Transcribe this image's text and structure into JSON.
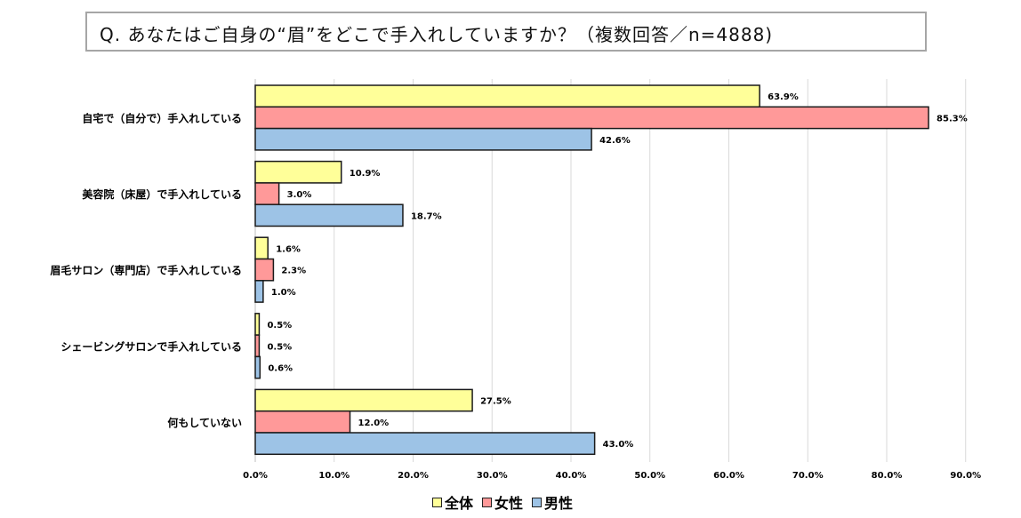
{
  "title": "Q. あなたはご自身の“眉”をどこで手入れしていますか？（複数回答／n=4888)",
  "chart_data": {
    "type": "bar",
    "orientation": "horizontal",
    "title": "Q. あなたはご自身の“眉”をどこで手入れしていますか？（複数回答／n=4888)",
    "xlabel": "",
    "ylabel": "",
    "xlim": [
      0,
      90
    ],
    "x_ticks": [
      "0.0%",
      "10.0%",
      "20.0%",
      "30.0%",
      "40.0%",
      "50.0%",
      "60.0%",
      "70.0%",
      "80.0%",
      "90.0%"
    ],
    "grid": true,
    "legend_position": "bottom",
    "categories": [
      "自宅で（自分で）手入れしている",
      "美容院（床屋）で手入れしている",
      "眉毛サロン（専門店）で手入れしている",
      "シェービングサロンで手入れしている",
      "何もしていない"
    ],
    "series": [
      {
        "name": "全体",
        "color": "#ffff99",
        "values": [
          63.9,
          10.9,
          1.6,
          0.5,
          27.5
        ],
        "labels": [
          "63.9%",
          "10.9%",
          "1.6%",
          "0.5%",
          "27.5%"
        ]
      },
      {
        "name": "女性",
        "color": "#ff9999",
        "values": [
          85.3,
          3.0,
          2.3,
          0.5,
          12.0
        ],
        "labels": [
          "85.3%",
          "3.0%",
          "2.3%",
          "0.5%",
          "12.0%"
        ]
      },
      {
        "name": "男性",
        "color": "#9dc3e6",
        "values": [
          42.6,
          18.7,
          1.0,
          0.6,
          43.0
        ],
        "labels": [
          "42.6%",
          "18.7%",
          "1.0%",
          "0.6%",
          "43.0%"
        ]
      }
    ]
  }
}
